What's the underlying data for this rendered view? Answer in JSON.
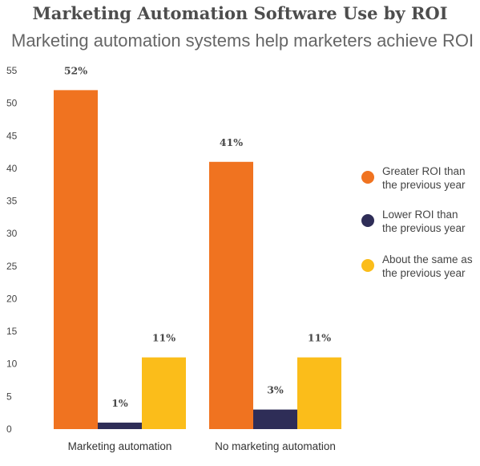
{
  "chart_data": {
    "type": "bar",
    "title": "Marketing Automation Software Use by ROI",
    "subtitle": "Marketing automation systems help marketers achieve ROI",
    "categories": [
      "Marketing automation",
      "No marketing automation"
    ],
    "series": [
      {
        "name": "Greater ROI than the previous year",
        "legend_lines": [
          "Greater ROI than",
          "the previous year"
        ],
        "values": [
          52,
          41
        ],
        "labels": [
          "52%",
          "41%"
        ],
        "color": "#f07320"
      },
      {
        "name": "Lower ROI than the previous year",
        "legend_lines": [
          "Lower ROI than",
          "the previous year"
        ],
        "values": [
          1,
          3
        ],
        "labels": [
          "1%",
          "3%"
        ],
        "color": "#2e2d57"
      },
      {
        "name": "About the same as the previous year",
        "legend_lines": [
          "About the same as",
          "the previous year"
        ],
        "values": [
          11,
          11
        ],
        "labels": [
          "11%",
          "11%"
        ],
        "color": "#fbbd1a"
      }
    ],
    "ylim": [
      0,
      55
    ],
    "yticks": [
      0,
      5,
      10,
      15,
      20,
      25,
      30,
      35,
      40,
      45,
      50,
      55
    ],
    "grid": false,
    "legend_position": "right"
  }
}
